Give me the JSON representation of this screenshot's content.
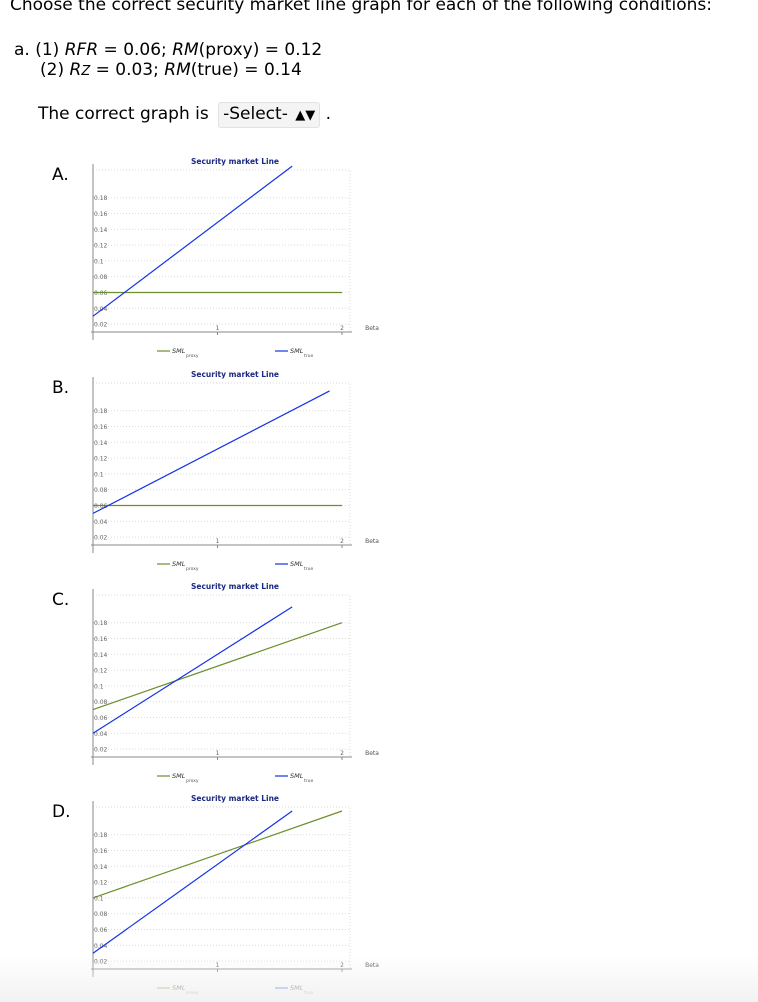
{
  "question": {
    "header": "Choose the correct security market line graph for each of the following conditions:",
    "part_label": "a.",
    "cond1_num": "(1)",
    "cond1_a_name": "RFR",
    "cond1_a_value": " = 0.06; ",
    "cond1_b_name": "RM",
    "cond1_b_rest": "(proxy) = 0.12",
    "cond2_num": "(2)",
    "cond2_a_name": "R",
    "cond2_a_sub": "Z",
    "cond2_a_value": " = 0.03; ",
    "cond2_b_name": "RM",
    "cond2_b_rest": "(true) = 0.14",
    "prompt": "The correct graph is",
    "select_value": "-Select-",
    "select_arrows": "▲▼",
    "period": "."
  },
  "colors": {
    "proxy": "#6a8f2a",
    "true": "#1433e6"
  },
  "chart_data": [
    {
      "type": "line",
      "label": "A.",
      "title": "Security market Line",
      "xlabel": "Beta",
      "xlim": [
        0,
        2
      ],
      "ylim": [
        0.01,
        0.21
      ],
      "x_ticks": [
        "1",
        "2"
      ],
      "y_ticks": [
        "0.02",
        "0.04",
        "0.06",
        "0.08",
        "0.1",
        "0.12",
        "0.14",
        "0.16",
        "0.18"
      ],
      "legend_placement": "bottom",
      "series": [
        {
          "name": "SML",
          "sub": "proxy",
          "key": "proxy",
          "x": [
            0,
            2
          ],
          "y": [
            0.06,
            0.06
          ]
        },
        {
          "name": "SML",
          "sub": "true",
          "key": "true",
          "x": [
            0,
            1.6
          ],
          "y": [
            0.03,
            0.22
          ]
        }
      ]
    },
    {
      "type": "line",
      "label": "B.",
      "title": "Security market Line",
      "xlabel": "Beta",
      "xlim": [
        0,
        2
      ],
      "ylim": [
        0.01,
        0.21
      ],
      "x_ticks": [
        "1",
        "2"
      ],
      "y_ticks": [
        "0.02",
        "0.04",
        "0.06",
        "0.08",
        "0.1",
        "0.12",
        "0.14",
        "0.16",
        "0.18"
      ],
      "legend_placement": "bottom",
      "series": [
        {
          "name": "SML",
          "sub": "proxy",
          "key": "proxy",
          "x": [
            0,
            2
          ],
          "y": [
            0.06,
            0.06
          ]
        },
        {
          "name": "SML",
          "sub": "true",
          "key": "true",
          "x": [
            0,
            1.9
          ],
          "y": [
            0.05,
            0.205
          ]
        }
      ]
    },
    {
      "type": "line",
      "label": "C.",
      "title": "Security market Line",
      "xlabel": "Beta",
      "xlim": [
        0,
        2
      ],
      "ylim": [
        0.01,
        0.21
      ],
      "x_ticks": [
        "1",
        "2"
      ],
      "y_ticks": [
        "0.02",
        "0.04",
        "0.06",
        "0.08",
        "0.1",
        "0.12",
        "0.14",
        "0.16",
        "0.18"
      ],
      "legend_placement": "bottom",
      "series": [
        {
          "name": "SML",
          "sub": "proxy",
          "key": "proxy",
          "x": [
            0,
            2
          ],
          "y": [
            0.07,
            0.18
          ]
        },
        {
          "name": "SML",
          "sub": "true",
          "key": "true",
          "x": [
            0,
            1.6
          ],
          "y": [
            0.04,
            0.2
          ]
        }
      ]
    },
    {
      "type": "line",
      "label": "D.",
      "title": "Security market Line",
      "xlabel": "Beta",
      "xlim": [
        0,
        2
      ],
      "ylim": [
        0.01,
        0.21
      ],
      "x_ticks": [
        "1",
        "2"
      ],
      "y_ticks": [
        "0.02",
        "0.04",
        "0.06",
        "0.08",
        "0.1",
        "0.12",
        "0.14",
        "0.16",
        "0.18"
      ],
      "legend_placement": "bottom",
      "series": [
        {
          "name": "SML",
          "sub": "proxy",
          "key": "proxy",
          "x": [
            0,
            2
          ],
          "y": [
            0.1,
            0.21
          ]
        },
        {
          "name": "SML",
          "sub": "true",
          "key": "true",
          "x": [
            0,
            1.6
          ],
          "y": [
            0.03,
            0.21
          ]
        }
      ]
    }
  ]
}
